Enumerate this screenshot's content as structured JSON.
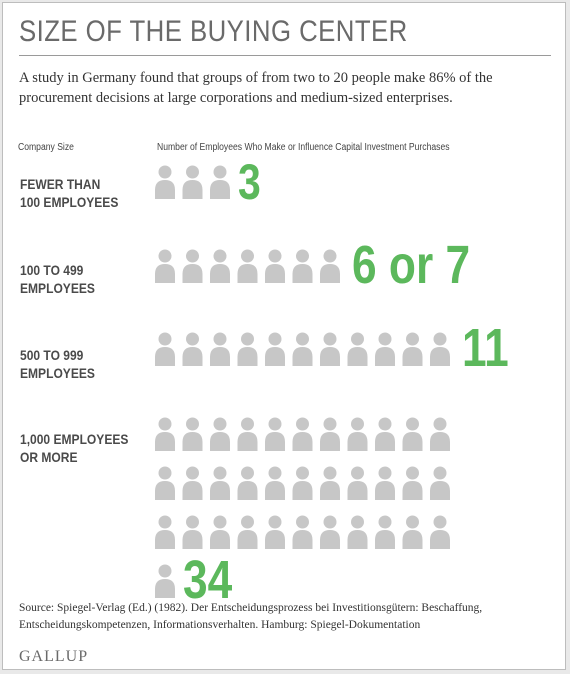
{
  "title": "SIZE OF THE BUYING CENTER",
  "intro": "A study in Germany found that groups of from two to 20 people make 86% of the procurement decisions at large corporations and medium-sized enterprises.",
  "column_headers": {
    "company_size": "Company Size",
    "employees": "Number of Employees Who Make or Influence Capital Investment Purchases"
  },
  "chart_data": {
    "type": "table",
    "categories": [
      "FEWER THAN\n100 EMPLOYEES",
      "100 TO 499\nEMPLOYEES",
      "500 TO 999\nEMPLOYEES",
      "1,000 EMPLOYEES\nOR MORE"
    ],
    "values": [
      3,
      7,
      11,
      34
    ],
    "value_labels": [
      "3",
      "6 or 7",
      "11",
      "34"
    ],
    "icon": "person-icon",
    "icon_color": "#c7c7c7",
    "value_color": "#5cb85c"
  },
  "source": "Source: Spiegel-Verlag (Ed.) (1982). Der Entscheidungsprozess bei Investitionsgütern: Beschaffung, Entscheidungskompetenzen, Informationsverhalten. Hamburg: Spiegel-Dokumentation",
  "logo": "GALLUP"
}
